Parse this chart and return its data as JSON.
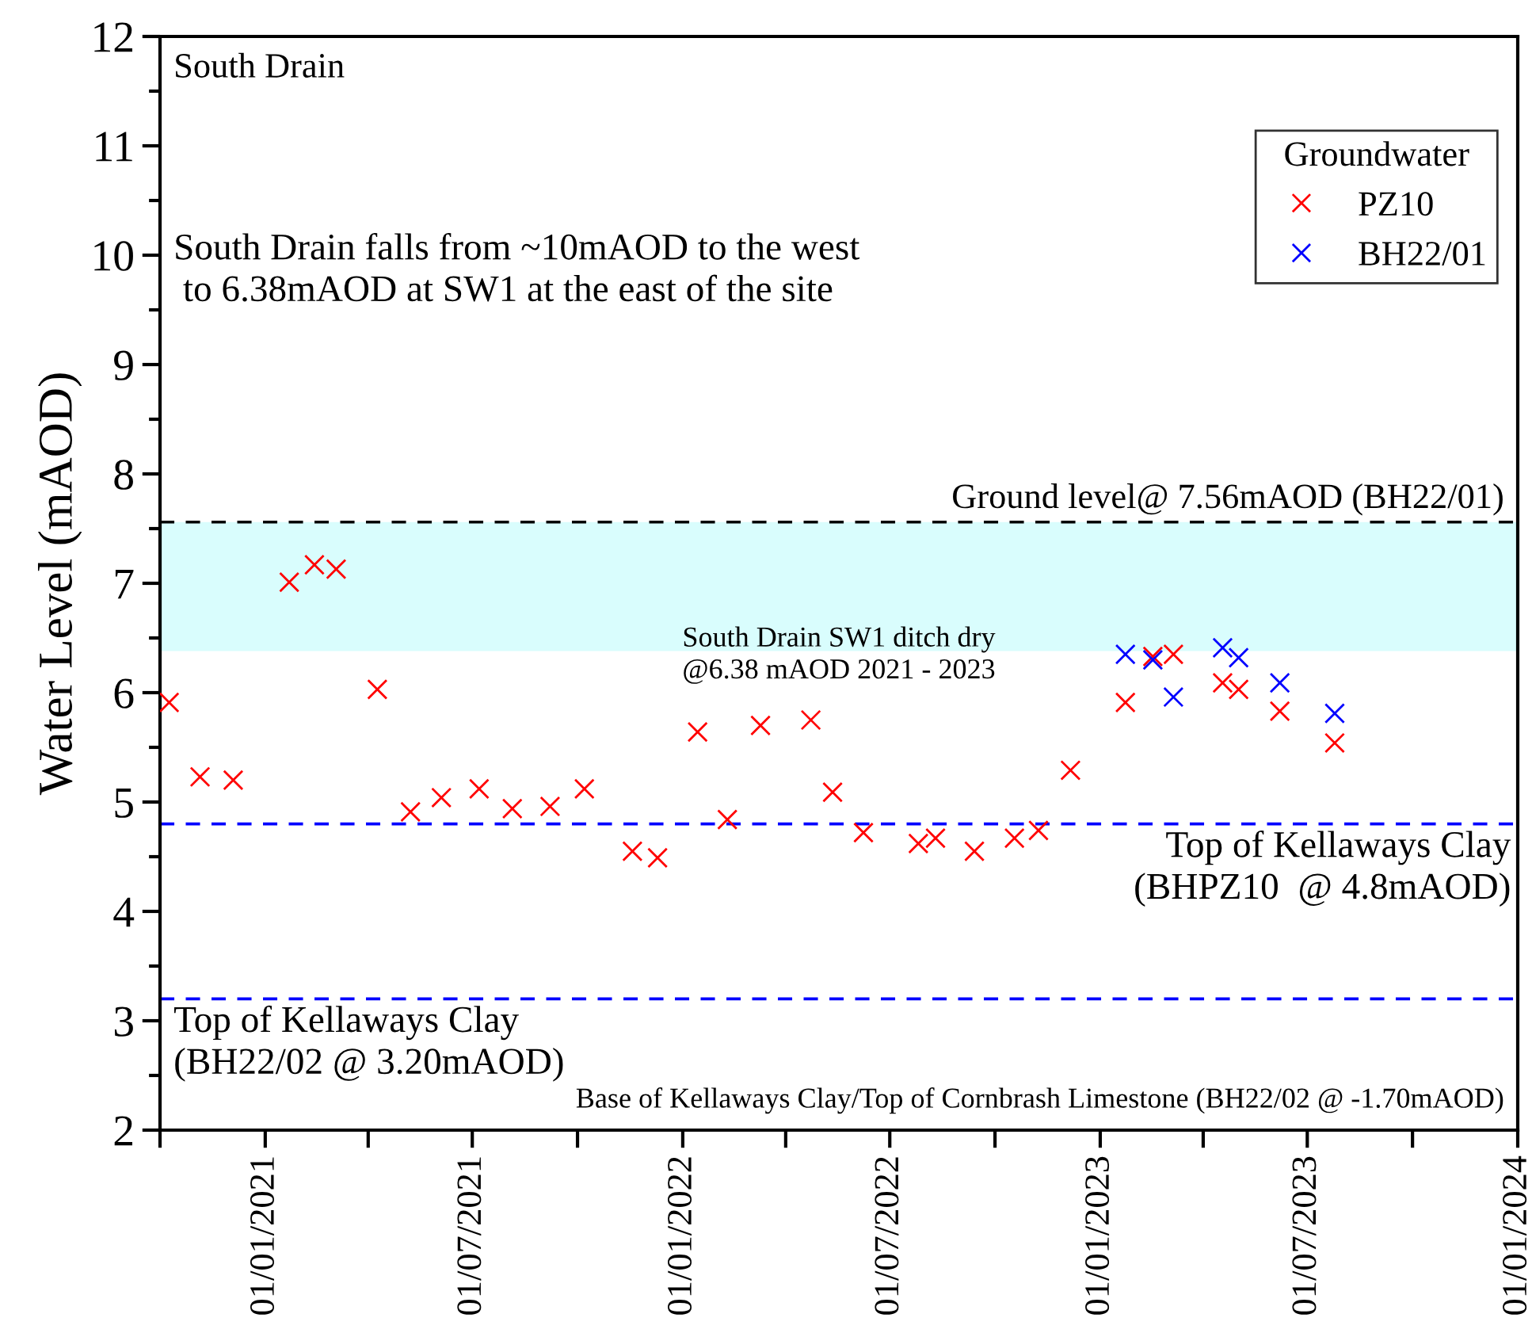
{
  "chart_data": {
    "type": "scatter",
    "ylabel": "Water Level (mAOD)",
    "legend_title": "Groundwater",
    "legend": "top right",
    "grid": false,
    "marker": "cross",
    "xlim": [
      "2020-10-01",
      "2024-01-01"
    ],
    "ylim": [
      2,
      12
    ],
    "yticks": [
      2,
      3,
      4,
      5,
      6,
      7,
      8,
      9,
      10,
      11,
      12
    ],
    "xticks": [
      {
        "value": "2020-10-01",
        "label": null
      },
      {
        "value": "2021-01-01",
        "label": "01/01/2021"
      },
      {
        "value": "2021-04-01",
        "label": null
      },
      {
        "value": "2021-07-01",
        "label": "01/07/2021"
      },
      {
        "value": "2021-10-01",
        "label": null
      },
      {
        "value": "2022-01-01",
        "label": "01/01/2022"
      },
      {
        "value": "2022-04-01",
        "label": null
      },
      {
        "value": "2022-07-01",
        "label": "01/07/2022"
      },
      {
        "value": "2022-10-01",
        "label": null
      },
      {
        "value": "2023-01-01",
        "label": "01/01/2023"
      },
      {
        "value": "2023-04-01",
        "label": null
      },
      {
        "value": "2023-07-01",
        "label": "01/07/2023"
      },
      {
        "value": "2023-10-01",
        "label": null
      },
      {
        "value": "2024-01-01",
        "label": "01/01/2024"
      }
    ],
    "series": [
      {
        "name": "PZ10",
        "color": "#ff0000",
        "x": [
          "2020-10-09",
          "2020-11-05",
          "2020-12-04",
          "2021-01-22",
          "2021-02-13",
          "2021-03-04",
          "2021-04-09",
          "2021-05-08",
          "2021-06-04",
          "2021-07-07",
          "2021-08-05",
          "2021-09-07",
          "2021-10-07",
          "2021-11-18",
          "2021-12-10",
          "2022-01-14",
          "2022-02-09",
          "2022-03-10",
          "2022-04-23",
          "2022-05-12",
          "2022-06-08",
          "2022-07-26",
          "2022-08-10",
          "2022-09-13",
          "2022-10-18",
          "2022-11-08",
          "2022-12-06",
          "2023-01-23",
          "2023-02-16",
          "2023-03-06",
          "2023-04-18",
          "2023-05-02",
          "2023-06-07",
          "2023-07-25"
        ],
        "values": [
          5.91,
          5.23,
          5.2,
          7.01,
          7.17,
          7.13,
          6.03,
          4.91,
          5.04,
          5.12,
          4.94,
          4.96,
          5.12,
          4.55,
          4.49,
          5.64,
          4.84,
          5.7,
          5.75,
          5.09,
          4.72,
          4.62,
          4.67,
          4.55,
          4.67,
          4.74,
          5.29,
          5.91,
          6.33,
          6.35,
          6.09,
          6.03,
          5.83,
          5.54
        ]
      },
      {
        "name": "BH22/01",
        "color": "#0000ff",
        "x": [
          "2023-01-23",
          "2023-02-16",
          "2023-03-06",
          "2023-04-18",
          "2023-05-02",
          "2023-06-07",
          "2023-07-25"
        ],
        "values": [
          6.35,
          6.3,
          5.96,
          6.41,
          6.32,
          6.09,
          5.81
        ]
      }
    ],
    "bands": [
      {
        "axis": "y",
        "from": 6.38,
        "to": 7.56,
        "label": "South Drain SW1 ditch dry\n@6.38 mAOD 2021 - 2023",
        "color": "#d9fdfd"
      }
    ],
    "ref_lines": [
      {
        "axis": "y",
        "value": 7.56,
        "label": "Ground level@ 7.56mAOD (BH22/01)",
        "color": "#000000",
        "line_style": "dashed"
      },
      {
        "axis": "y",
        "value": 4.8,
        "label": "Top of Kellaways Clay\n(BHPZ10  @ 4.8mAOD)",
        "color": "#0000ff",
        "line_style": "dashed"
      },
      {
        "axis": "y",
        "value": 3.2,
        "label": "Top of Kellaways Clay\n(BH22/02 @ 3.20mAOD)",
        "color": "#0000ff",
        "line_style": "dashed"
      }
    ],
    "annotations": [
      "South Drain",
      "South Drain falls from ~10mAOD to the west\n to 6.38mAOD at SW1 at the east of the site",
      "Base of Kellaways Clay/Top of Cornbrash Limestone (BH22/02 @ -1.70mAOD)"
    ]
  }
}
